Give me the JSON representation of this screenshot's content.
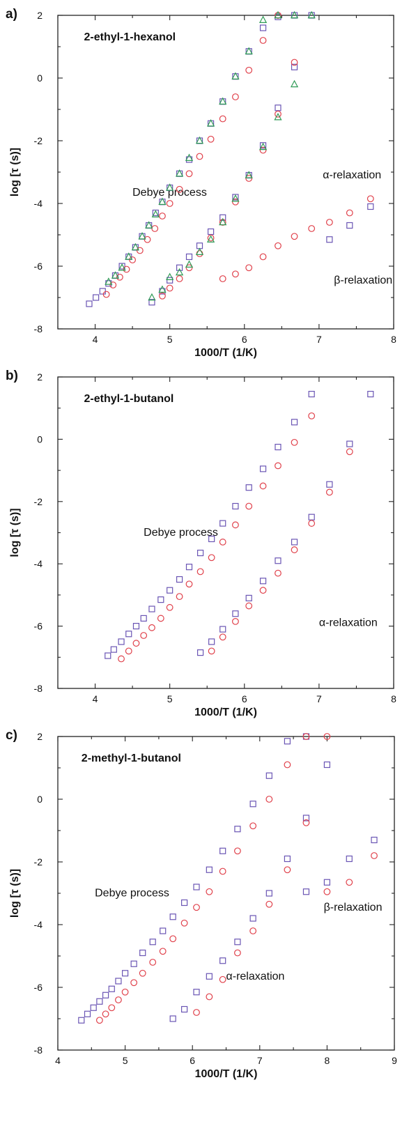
{
  "colors": {
    "squares": "#6a55b4",
    "circles": "#e0404a",
    "triangles": "#2e9a55"
  },
  "chart_data": [
    {
      "type": "scatter",
      "panel": "a)",
      "title": "2-ethyl-1-hexanol",
      "xlabel": "1000/T (1/K)",
      "ylabel": "log [τ (s)]",
      "xlim": [
        3.5,
        8
      ],
      "ylim": [
        -8,
        2
      ],
      "xticks": [
        4,
        5,
        6,
        7,
        8
      ],
      "yticks": [
        -8,
        -6,
        -4,
        -2,
        0,
        2
      ],
      "annotations": [
        {
          "text": "Debye process",
          "x": 4.5,
          "y": -3.75
        },
        {
          "text": "α-relaxation",
          "x": 7.05,
          "y": -3.2
        },
        {
          "text": "β-relaxation",
          "x": 7.2,
          "y": -6.55
        }
      ],
      "series": [
        {
          "marker": "square",
          "color": "squares",
          "x": [
            3.92,
            4.01,
            4.1,
            4.18,
            4.27,
            4.36,
            4.45,
            4.54,
            4.63,
            4.72,
            4.81,
            4.9,
            5.0,
            5.13,
            5.26,
            5.4,
            5.55,
            5.71,
            5.88,
            6.06,
            6.25,
            6.45,
            6.67,
            6.9
          ],
          "y": [
            -7.2,
            -7.0,
            -6.8,
            -6.55,
            -6.3,
            -6.0,
            -5.7,
            -5.4,
            -5.05,
            -4.7,
            -4.3,
            -3.95,
            -3.5,
            -3.05,
            -2.6,
            -2.0,
            -1.45,
            -0.75,
            0.05,
            0.85,
            1.6,
            1.95,
            2.0,
            2.0
          ]
        },
        {
          "marker": "circle",
          "color": "circles",
          "x": [
            4.15,
            4.24,
            4.33,
            4.42,
            4.5,
            4.6,
            4.7,
            4.8,
            4.9,
            5.0,
            5.13,
            5.26,
            5.4,
            5.55,
            5.71,
            5.88,
            6.06,
            6.25,
            6.45
          ],
          "y": [
            -6.9,
            -6.6,
            -6.35,
            -6.1,
            -5.8,
            -5.5,
            -5.15,
            -4.8,
            -4.4,
            -4.0,
            -3.55,
            -3.05,
            -2.5,
            -1.95,
            -1.3,
            -0.6,
            0.25,
            1.2,
            2.0
          ]
        },
        {
          "marker": "triangle",
          "color": "triangles",
          "x": [
            4.18,
            4.27,
            4.36,
            4.45,
            4.54,
            4.63,
            4.72,
            4.81,
            4.9,
            5.0,
            5.13,
            5.26,
            5.4,
            5.55,
            5.71,
            5.88,
            6.06,
            6.25,
            6.45,
            6.67,
            6.9
          ],
          "y": [
            -6.5,
            -6.3,
            -6.05,
            -5.7,
            -5.4,
            -5.05,
            -4.7,
            -4.35,
            -3.95,
            -3.5,
            -3.05,
            -2.55,
            -2.0,
            -1.45,
            -0.75,
            0.05,
            0.85,
            1.85,
            2.0,
            2.0,
            2.0
          ]
        },
        {
          "marker": "square",
          "color": "squares",
          "x": [
            4.76,
            4.9,
            5.0,
            5.13,
            5.26,
            5.4,
            5.55,
            5.71,
            5.88,
            6.06,
            6.25,
            6.45,
            6.67
          ],
          "y": [
            -7.15,
            -6.8,
            -6.45,
            -6.05,
            -5.7,
            -5.35,
            -4.9,
            -4.45,
            -3.8,
            -3.1,
            -2.15,
            -0.95,
            0.35
          ]
        },
        {
          "marker": "circle",
          "color": "circles",
          "x": [
            4.9,
            5.0,
            5.13,
            5.26,
            5.4,
            5.55,
            5.71,
            5.88,
            6.06,
            6.25,
            6.45,
            6.67
          ],
          "y": [
            -6.95,
            -6.7,
            -6.4,
            -6.05,
            -5.6,
            -5.1,
            -4.6,
            -3.95,
            -3.2,
            -2.3,
            -1.15,
            0.5
          ]
        },
        {
          "marker": "triangle",
          "color": "triangles",
          "x": [
            4.76,
            4.9,
            5.0,
            5.13,
            5.26,
            5.4,
            5.55,
            5.71,
            5.88,
            6.06,
            6.25,
            6.45,
            6.67
          ],
          "y": [
            -7.0,
            -6.75,
            -6.35,
            -6.2,
            -5.95,
            -5.55,
            -5.15,
            -4.6,
            -3.85,
            -3.1,
            -2.2,
            -1.25,
            -0.2
          ]
        },
        {
          "marker": "circle",
          "color": "circles",
          "x": [
            5.71,
            5.88,
            6.06,
            6.25,
            6.45,
            6.67,
            6.9,
            7.14,
            7.41,
            7.69
          ],
          "y": [
            -6.4,
            -6.25,
            -6.05,
            -5.7,
            -5.35,
            -5.05,
            -4.8,
            -4.6,
            -4.3,
            -3.85
          ]
        },
        {
          "marker": "square",
          "color": "squares",
          "x": [
            7.14,
            7.41,
            7.69
          ],
          "y": [
            -5.15,
            -4.7,
            -4.1
          ]
        }
      ]
    },
    {
      "type": "scatter",
      "panel": "b)",
      "title": "2-ethyl-1-butanol",
      "xlabel": "1000/T (1/K)",
      "ylabel": "log [τ (s)]",
      "xlim": [
        3.5,
        8
      ],
      "ylim": [
        -8,
        2
      ],
      "xticks": [
        4,
        5,
        6,
        7,
        8
      ],
      "yticks": [
        -8,
        -6,
        -4,
        -2,
        0,
        2
      ],
      "annotations": [
        {
          "text": "Debye process",
          "x": 4.65,
          "y": -3.1
        },
        {
          "text": "α-relaxation",
          "x": 7.0,
          "y": -6.0
        }
      ],
      "series": [
        {
          "marker": "square",
          "color": "squares",
          "x": [
            4.17,
            4.25,
            4.35,
            4.45,
            4.55,
            4.65,
            4.76,
            4.88,
            5.0,
            5.13,
            5.26,
            5.41,
            5.56,
            5.71,
            5.88,
            6.06,
            6.25,
            6.45,
            6.67,
            6.9,
            7.69
          ],
          "y": [
            -6.95,
            -6.75,
            -6.5,
            -6.25,
            -6.0,
            -5.75,
            -5.45,
            -5.15,
            -4.85,
            -4.5,
            -4.1,
            -3.65,
            -3.2,
            -2.7,
            -2.15,
            -1.55,
            -0.95,
            -0.25,
            0.55,
            1.45,
            1.45
          ]
        },
        {
          "marker": "circle",
          "color": "circles",
          "x": [
            4.35,
            4.45,
            4.55,
            4.65,
            4.76,
            4.88,
            5.0,
            5.13,
            5.26,
            5.41,
            5.56,
            5.71,
            5.88,
            6.06,
            6.25,
            6.45,
            6.67,
            6.9
          ],
          "y": [
            -7.05,
            -6.8,
            -6.55,
            -6.3,
            -6.05,
            -5.75,
            -5.4,
            -5.05,
            -4.65,
            -4.25,
            -3.8,
            -3.3,
            -2.75,
            -2.15,
            -1.5,
            -0.85,
            -0.1,
            0.75
          ]
        },
        {
          "marker": "square",
          "color": "squares",
          "x": [
            5.41,
            5.56,
            5.71,
            5.88,
            6.06,
            6.25,
            6.45,
            6.67,
            6.9,
            7.14,
            7.41
          ],
          "y": [
            -6.85,
            -6.5,
            -6.1,
            -5.6,
            -5.1,
            -4.55,
            -3.9,
            -3.3,
            -2.5,
            -1.45,
            -0.15
          ]
        },
        {
          "marker": "circle",
          "color": "circles",
          "x": [
            5.56,
            5.71,
            5.88,
            6.06,
            6.25,
            6.45,
            6.67,
            6.9,
            7.14,
            7.41
          ],
          "y": [
            -6.8,
            -6.35,
            -5.85,
            -5.35,
            -4.85,
            -4.3,
            -3.55,
            -2.7,
            -1.7,
            -0.4
          ]
        }
      ]
    },
    {
      "type": "scatter",
      "panel": "c)",
      "title": "2-methyl-1-butanol",
      "xlabel": "1000/T (1/K)",
      "ylabel": "log [τ (s)]",
      "xlim": [
        4,
        9
      ],
      "ylim": [
        -8,
        2
      ],
      "xticks": [
        4,
        5,
        6,
        7,
        8,
        9
      ],
      "yticks": [
        -8,
        -6,
        -4,
        -2,
        0,
        2
      ],
      "annotations": [
        {
          "text": "Debye process",
          "x": 4.55,
          "y": -3.1
        },
        {
          "text": "β-relaxation",
          "x": 7.95,
          "y": -3.55
        },
        {
          "text": "α-relaxation",
          "x": 6.5,
          "y": -5.75
        }
      ],
      "series": [
        {
          "marker": "square",
          "color": "squares",
          "x": [
            4.35,
            4.44,
            4.53,
            4.62,
            4.71,
            4.8,
            4.9,
            5.0,
            5.13,
            5.26,
            5.41,
            5.56,
            5.71,
            5.88,
            6.06,
            6.25,
            6.45,
            6.67,
            6.9,
            7.14,
            7.41,
            7.69
          ],
          "y": [
            -7.05,
            -6.85,
            -6.65,
            -6.45,
            -6.25,
            -6.05,
            -5.8,
            -5.55,
            -5.25,
            -4.9,
            -4.55,
            -4.2,
            -3.75,
            -3.3,
            -2.8,
            -2.25,
            -1.65,
            -0.95,
            -0.15,
            0.75,
            1.85,
            2.0
          ]
        },
        {
          "marker": "circle",
          "color": "circles",
          "x": [
            4.62,
            4.71,
            4.8,
            4.9,
            5.0,
            5.13,
            5.26,
            5.41,
            5.56,
            5.71,
            5.88,
            6.06,
            6.25,
            6.45,
            6.67,
            6.9,
            7.14,
            7.41,
            7.69,
            8.0
          ],
          "y": [
            -7.05,
            -6.85,
            -6.65,
            -6.4,
            -6.15,
            -5.85,
            -5.55,
            -5.2,
            -4.85,
            -4.45,
            -3.95,
            -3.45,
            -2.95,
            -2.3,
            -1.65,
            -0.85,
            0.0,
            1.1,
            2.0,
            2.0
          ]
        },
        {
          "marker": "square",
          "color": "squares",
          "x": [
            5.71,
            5.88,
            6.06,
            6.25,
            6.45,
            6.67,
            6.9,
            7.14,
            7.41,
            7.69,
            8.0
          ],
          "y": [
            -7.0,
            -6.7,
            -6.15,
            -5.65,
            -5.15,
            -4.55,
            -3.8,
            -3.0,
            -1.9,
            -0.6,
            1.1
          ]
        },
        {
          "marker": "circle",
          "color": "circles",
          "x": [
            6.06,
            6.25,
            6.45,
            6.67,
            6.9,
            7.14,
            7.41,
            7.69
          ],
          "y": [
            -6.8,
            -6.3,
            -5.75,
            -4.9,
            -4.2,
            -3.35,
            -2.25,
            -0.75
          ]
        },
        {
          "marker": "square",
          "color": "squares",
          "x": [
            7.69,
            8.0,
            8.33,
            8.7
          ],
          "y": [
            -2.95,
            -2.65,
            -1.9,
            -1.3
          ]
        },
        {
          "marker": "circle",
          "color": "circles",
          "x": [
            8.0,
            8.33,
            8.7
          ],
          "y": [
            -2.95,
            -2.65,
            -1.8
          ]
        }
      ]
    }
  ]
}
